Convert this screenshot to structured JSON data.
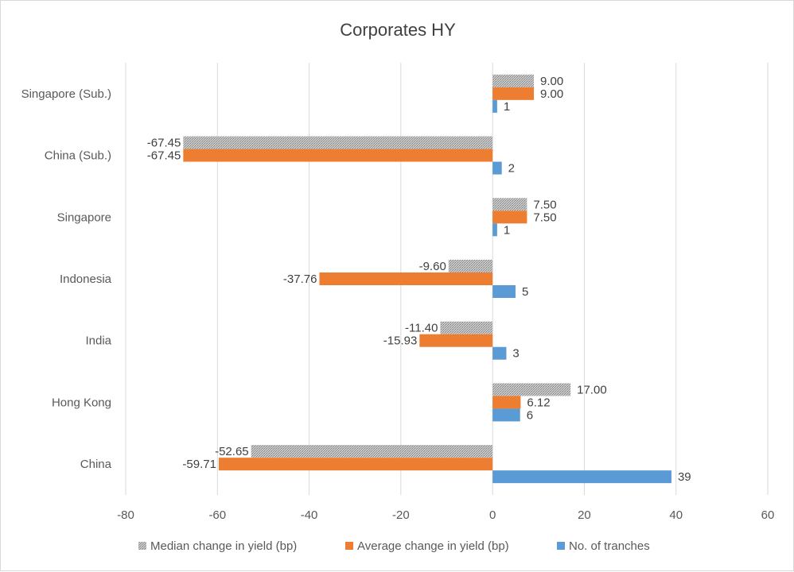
{
  "chart_data": {
    "type": "bar",
    "orientation": "horizontal",
    "title": "Corporates HY",
    "categories": [
      "Singapore (Sub.)",
      "China (Sub.)",
      "Singapore",
      "Indonesia",
      "India",
      "Hong Kong",
      "China"
    ],
    "series": [
      {
        "name": "Median change in yield (bp)",
        "color": "#a5a5a5",
        "pattern": "dotted-gray",
        "values": [
          9.0,
          -67.45,
          7.5,
          -9.6,
          -11.4,
          17.0,
          -52.65
        ],
        "labels": [
          "9.00",
          "-67.45",
          "7.50",
          "-9.60",
          "-11.40",
          "17.00",
          "-52.65"
        ]
      },
      {
        "name": "Average change in yield (bp)",
        "color": "#ed7d31",
        "values": [
          9.0,
          -67.45,
          7.5,
          -37.76,
          -15.93,
          6.12,
          -59.71
        ],
        "labels": [
          "9.00",
          "-67.45",
          "7.50",
          "-37.76",
          "-15.93",
          "6.12",
          "-59.71"
        ]
      },
      {
        "name": "No. of tranches",
        "color": "#5b9bd5",
        "values": [
          1,
          2,
          1,
          5,
          3,
          6,
          39
        ],
        "labels": [
          "1",
          "2",
          "1",
          "5",
          "3",
          "6",
          "39"
        ]
      }
    ],
    "xlim": [
      -80,
      60
    ],
    "xticks": [
      "-80",
      "-60",
      "-40",
      "-20",
      "0",
      "20",
      "40",
      "60"
    ],
    "grid": "vertical",
    "legend": "bottom"
  }
}
